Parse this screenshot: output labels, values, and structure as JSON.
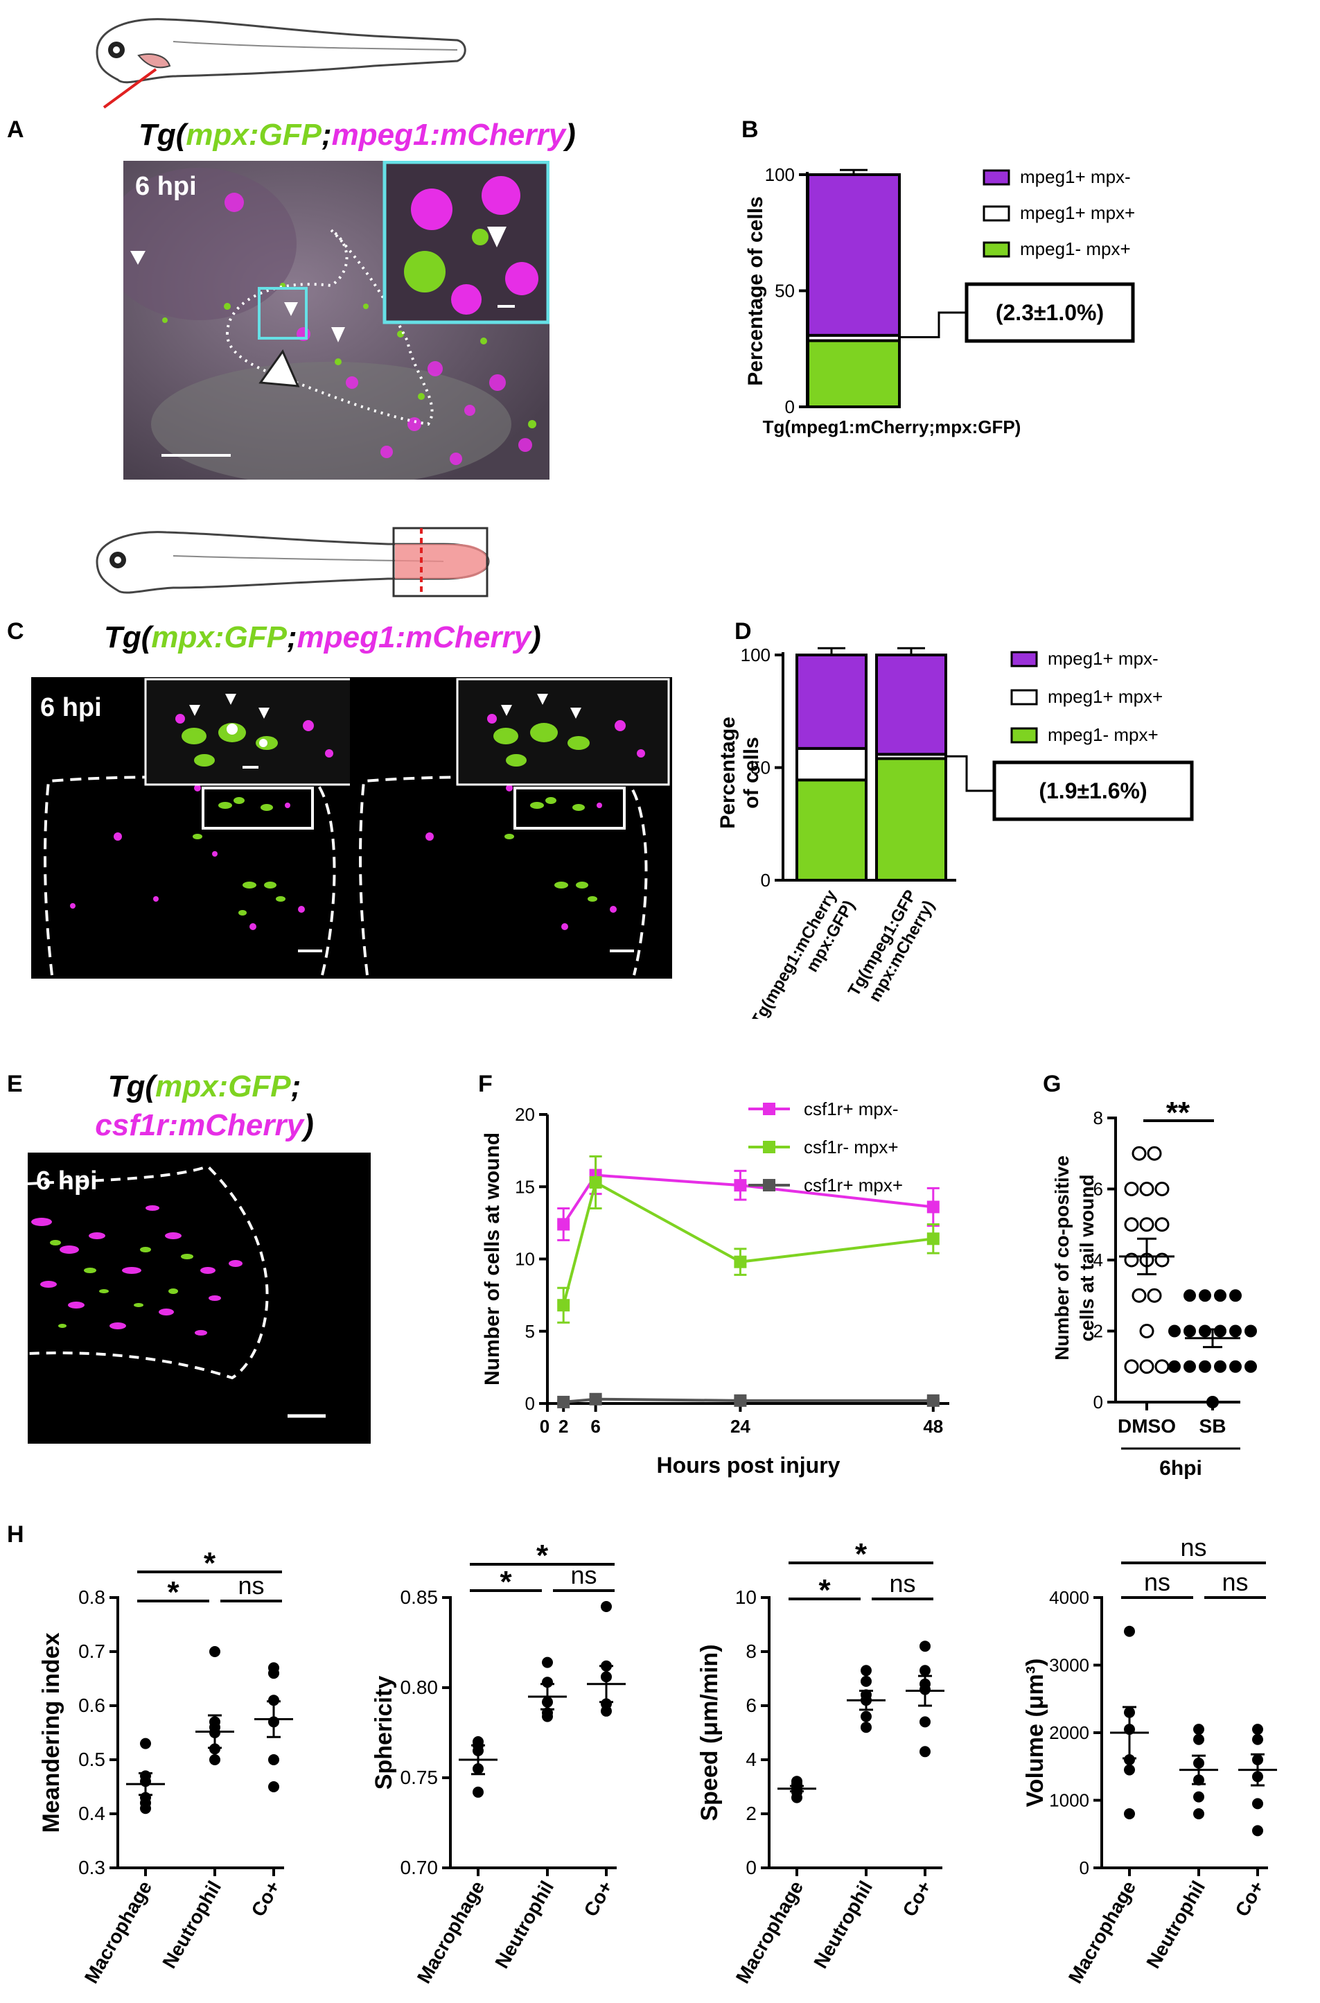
{
  "panels": {
    "A": {
      "letter": "A",
      "title_prefix": "Tg(",
      "title_green": "mpx:GFP",
      "title_sep": ";",
      "title_magenta": "mpeg1:mCherry",
      "title_suffix": ")",
      "time_label": "6 hpi"
    },
    "B": {
      "letter": "B"
    },
    "C": {
      "letter": "C",
      "title_prefix": "Tg(",
      "title_green": "mpx:GFP",
      "title_sep": ";",
      "title_magenta": "mpeg1:mCherry",
      "title_suffix": ")",
      "time_label": "6 hpi"
    },
    "D": {
      "letter": "D"
    },
    "E": {
      "letter": "E",
      "title_prefix": "Tg(",
      "title_green": "mpx:GFP",
      "title_sep": ";",
      "title_magenta": "csf1r:mCherry",
      "title_suffix": ")",
      "time_label": "6 hpi"
    },
    "F": {
      "letter": "F"
    },
    "G": {
      "letter": "G"
    },
    "H": {
      "letter": "H"
    }
  },
  "colors": {
    "green": "#7ed321",
    "magenta": "#e62ee6",
    "purple": "#9b30d9",
    "white": "#ffffff",
    "cyan": "#66e0e6",
    "gray": "#555555"
  },
  "chart_data": [
    {
      "id": "B",
      "type": "bar",
      "stacked": true,
      "categories": [
        "Tg(mpeg1:mCherry;mpx:GFP)"
      ],
      "ylabel": "Percentage of cells",
      "ylim": [
        0,
        100
      ],
      "yticks": [
        0,
        50,
        100
      ],
      "series": [
        {
          "name": "mpeg1- mpx+",
          "values": [
            28.5
          ],
          "color": "#7ed321"
        },
        {
          "name": "mpeg1+ mpx+",
          "values": [
            2.3
          ],
          "color": "#ffffff"
        },
        {
          "name": "mpeg1+ mpx-",
          "values": [
            69.2
          ],
          "color": "#9b30d9"
        }
      ],
      "error_top": [
        102
      ],
      "legend": [
        "mpeg1+ mpx-",
        "mpeg1+ mpx+",
        "mpeg1- mpx+"
      ],
      "annotation": "(2.3±1.0%)"
    },
    {
      "id": "D",
      "type": "bar",
      "stacked": true,
      "categories": [
        "Tg(mpeg1:mCherry\nmpx:GFP)",
        "Tg(mpeg1:GFP\nmpx:mCherry)"
      ],
      "ylabel": "Percentage\nof cells",
      "ylim": [
        0,
        100
      ],
      "yticks": [
        0,
        50,
        100
      ],
      "series": [
        {
          "name": "mpeg1- mpx+",
          "values": [
            44.5,
            54
          ],
          "color": "#7ed321"
        },
        {
          "name": "mpeg1+ mpx+",
          "values": [
            14,
            1.9
          ],
          "color": "#ffffff"
        },
        {
          "name": "mpeg1+ mpx-",
          "values": [
            41.5,
            44.1
          ],
          "color": "#9b30d9"
        }
      ],
      "error_top": [
        103,
        103
      ],
      "legend": [
        "mpeg1+ mpx-",
        "mpeg1+ mpx+",
        "mpeg1- mpx+"
      ],
      "annotation": "(1.9±1.6%)"
    },
    {
      "id": "F",
      "type": "line",
      "xlabel": "Hours post injury",
      "ylabel": "Number of cells at wound",
      "xlim": [
        0,
        50
      ],
      "ylim": [
        0,
        20
      ],
      "xticks": [
        0,
        2,
        6,
        24,
        48
      ],
      "yticks": [
        0,
        5,
        10,
        15,
        20
      ],
      "x": [
        2,
        6,
        24,
        48
      ],
      "series": [
        {
          "name": "csf1r+ mpx-",
          "values": [
            12.4,
            15.8,
            15.1,
            13.6
          ],
          "err": [
            1.1,
            1.3,
            1.0,
            1.3
          ],
          "color": "#e62ee6"
        },
        {
          "name": "csf1r- mpx+",
          "values": [
            6.8,
            15.3,
            9.8,
            11.4
          ],
          "err": [
            1.2,
            1.8,
            0.9,
            1.0
          ],
          "color": "#7ed321"
        },
        {
          "name": "csf1r+ mpx+",
          "values": [
            0.1,
            0.3,
            0.2,
            0.2
          ],
          "err": [
            0.1,
            0.2,
            0.1,
            0.1
          ],
          "color": "#555555"
        }
      ]
    },
    {
      "id": "G",
      "type": "scatter",
      "categories": [
        "DMSO",
        "SB"
      ],
      "ylabel": "Number of co-positive\ncells at tail wound",
      "ylim": [
        0,
        8
      ],
      "yticks": [
        0,
        2,
        4,
        6,
        8
      ],
      "group_label": "6hpi",
      "significance": "**",
      "groups": [
        {
          "name": "DMSO",
          "points": [
            7,
            7,
            6,
            6,
            6,
            5,
            5,
            5,
            4,
            4,
            4,
            3,
            3,
            2,
            1,
            1,
            1
          ],
          "mean": 4.1,
          "sem": 0.5,
          "filled": false
        },
        {
          "name": "SB",
          "points": [
            3,
            3,
            3,
            3,
            2,
            2,
            2,
            2,
            2,
            2,
            1,
            1,
            1,
            1,
            1,
            1,
            0
          ],
          "mean": 1.8,
          "sem": 0.25,
          "filled": true
        }
      ]
    },
    {
      "id": "H1",
      "type": "scatter",
      "categories": [
        "Macrophage",
        "Neutrophil",
        "Co+"
      ],
      "ylabel": "Meandering index",
      "ylim": [
        0.3,
        0.8
      ],
      "yticks": [
        0.3,
        0.4,
        0.5,
        0.6,
        0.7,
        0.8
      ],
      "ytick_labels": [
        "0.3",
        "0.4",
        "0.5",
        "0.6",
        "0.7",
        "0.8"
      ],
      "groups": [
        {
          "name": "Macrophage",
          "points": [
            0.53,
            0.47,
            0.46,
            0.43,
            0.42,
            0.41
          ],
          "mean": 0.455,
          "sem": 0.02
        },
        {
          "name": "Neutrophil",
          "points": [
            0.7,
            0.57,
            0.56,
            0.55,
            0.52,
            0.5
          ],
          "mean": 0.552,
          "sem": 0.03
        },
        {
          "name": "Co+",
          "points": [
            0.67,
            0.66,
            0.61,
            0.57,
            0.5,
            0.45
          ],
          "mean": 0.575,
          "sem": 0.033
        }
      ],
      "significance": [
        {
          "from": 0,
          "to": 1,
          "label": "*",
          "level": 1
        },
        {
          "from": 1,
          "to": 2,
          "label": "ns",
          "level": 1
        },
        {
          "from": 0,
          "to": 2,
          "label": "*",
          "level": 2
        }
      ]
    },
    {
      "id": "H2",
      "type": "scatter",
      "categories": [
        "Macrophage",
        "Neutrophil",
        "Co+"
      ],
      "ylabel": "Sphericity",
      "ylim": [
        0.7,
        0.85
      ],
      "yticks": [
        0.7,
        0.75,
        0.8,
        0.85
      ],
      "ytick_labels": [
        "0.70",
        "0.75",
        "0.80",
        "0.85"
      ],
      "groups": [
        {
          "name": "Macrophage",
          "points": [
            0.77,
            0.768,
            0.765,
            0.755,
            0.742
          ],
          "mean": 0.76,
          "sem": 0.008
        },
        {
          "name": "Neutrophil",
          "points": [
            0.814,
            0.803,
            0.792,
            0.786,
            0.784
          ],
          "mean": 0.795,
          "sem": 0.007
        },
        {
          "name": "Co+",
          "points": [
            0.845,
            0.812,
            0.806,
            0.791,
            0.787
          ],
          "mean": 0.802,
          "sem": 0.01
        }
      ],
      "significance": [
        {
          "from": 0,
          "to": 1,
          "label": "*",
          "level": 1
        },
        {
          "from": 1,
          "to": 2,
          "label": "ns",
          "level": 1
        },
        {
          "from": 0,
          "to": 2,
          "label": "*",
          "level": 2
        }
      ]
    },
    {
      "id": "H3",
      "type": "scatter",
      "categories": [
        "Macrophage",
        "Neutrophil",
        "Co+"
      ],
      "ylabel": "Speed (μm/min)",
      "ylim": [
        0,
        10
      ],
      "yticks": [
        0,
        2,
        4,
        6,
        8,
        10
      ],
      "ytick_labels": [
        "0",
        "2",
        "4",
        "6",
        "8",
        "10"
      ],
      "groups": [
        {
          "name": "Macrophage",
          "points": [
            3.2,
            3.1,
            3.0,
            2.9,
            2.8,
            2.6
          ],
          "mean": 2.93,
          "sem": 0.1
        },
        {
          "name": "Neutrophil",
          "points": [
            7.3,
            6.9,
            6.4,
            6.2,
            5.6,
            5.2
          ],
          "mean": 6.2,
          "sem": 0.35
        },
        {
          "name": "Co+",
          "points": [
            8.2,
            7.3,
            6.8,
            6.6,
            5.4,
            4.3
          ],
          "mean": 6.55,
          "sem": 0.55
        }
      ],
      "significance": [
        {
          "from": 0,
          "to": 1,
          "label": "*",
          "level": 1
        },
        {
          "from": 1,
          "to": 2,
          "label": "ns",
          "level": 1
        },
        {
          "from": 0,
          "to": 2,
          "label": "*",
          "level": 2
        }
      ]
    },
    {
      "id": "H4",
      "type": "scatter",
      "categories": [
        "Macrophage",
        "Neutrophil",
        "Co+"
      ],
      "ylabel": "Volume (μm³)",
      "ylim": [
        0,
        4000
      ],
      "yticks": [
        0,
        1000,
        2000,
        3000,
        4000
      ],
      "ytick_labels": [
        "0",
        "1000",
        "2000",
        "3000",
        "4000"
      ],
      "groups": [
        {
          "name": "Macrophage",
          "points": [
            3500,
            2300,
            2050,
            1600,
            1450,
            800
          ],
          "mean": 2000,
          "sem": 380
        },
        {
          "name": "Neutrophil",
          "points": [
            2050,
            1900,
            1550,
            1300,
            1050,
            800
          ],
          "mean": 1450,
          "sem": 210
        },
        {
          "name": "Co+",
          "points": [
            2050,
            1900,
            1600,
            1350,
            950,
            550
          ],
          "mean": 1450,
          "sem": 230
        }
      ],
      "significance": [
        {
          "from": 0,
          "to": 1,
          "label": "ns",
          "level": 1
        },
        {
          "from": 1,
          "to": 2,
          "label": "ns",
          "level": 1
        },
        {
          "from": 0,
          "to": 2,
          "label": "ns",
          "level": 2
        }
      ]
    }
  ]
}
